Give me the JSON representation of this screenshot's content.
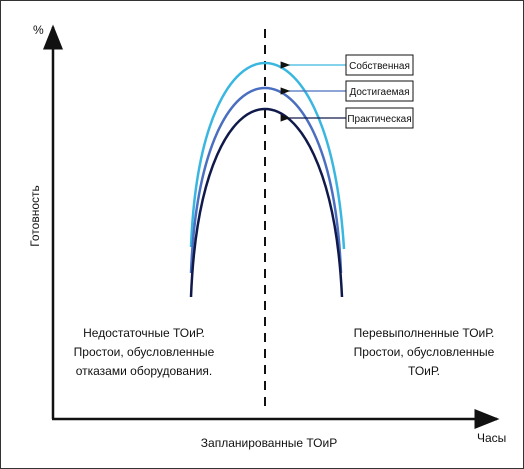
{
  "axis": {
    "y_unit": "%",
    "y_label": "Готовность",
    "x_label": "Часы",
    "center_label": "Запланированные ТОиР"
  },
  "legend": {
    "own": "Собственная",
    "achieved": "Достигаемая",
    "practical": "Практическая"
  },
  "notes": {
    "left": [
      "Недостаточные ТОиР.",
      "Простои, обусловленные",
      "отказами оборудования."
    ],
    "right": [
      "Перевыполненные ТОиР.",
      "Простои, обусловленные",
      "ТОиР."
    ]
  },
  "colors": {
    "own": "#3ab7e0",
    "achieved": "#4a6fc0",
    "practical": "#101a4a",
    "axis": "#111111"
  }
}
